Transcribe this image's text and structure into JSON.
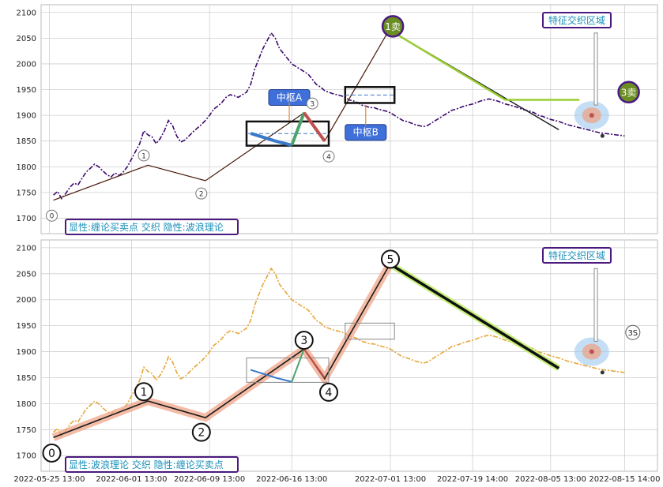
{
  "chart_data": [
    {
      "type": "line",
      "title": "",
      "ylim": [
        1670,
        2115
      ],
      "yticks": [
        1700,
        1750,
        1800,
        1850,
        1900,
        1950,
        2000,
        2050,
        2100
      ],
      "grid": true,
      "price": {
        "color": "#3d0a6e",
        "style": "dashdot",
        "x": [
          0.5,
          1,
          1.5,
          2,
          2.5,
          3,
          3.5,
          4,
          4.5,
          5,
          5.5,
          6,
          6.5,
          7,
          7.5,
          8,
          8.5,
          9,
          9.5,
          10,
          10.5,
          11,
          11.5,
          12,
          12.5,
          13,
          13.5,
          14,
          14.5,
          15,
          15.5,
          16,
          16.5,
          17,
          17.5,
          18,
          18.5,
          19,
          19.5,
          20,
          20.5,
          21,
          21.5,
          22,
          22.5,
          23,
          23.5,
          24,
          24.5,
          25,
          25.5,
          26,
          26.5,
          27,
          27.5,
          28,
          28.5,
          29,
          29.5,
          30,
          30.5,
          31,
          31.5,
          32,
          32.5,
          33,
          33.5,
          34,
          34.5,
          35,
          35.5,
          36,
          36.5,
          37,
          37.5,
          38,
          38.5,
          39,
          39.5,
          40,
          40.5,
          41,
          41.5,
          42,
          42.5,
          43,
          43.5,
          44,
          44.5,
          45,
          45.5,
          46,
          46.5,
          47,
          47.5,
          48,
          48.5,
          49,
          49.5,
          50,
          50.5,
          51,
          51.5,
          52,
          52.5,
          53,
          53.5,
          54,
          54.5,
          55,
          55.5,
          56,
          56.5,
          57,
          57.5,
          58,
          58.5,
          59,
          59.5,
          60,
          60.5,
          61,
          61.5,
          62,
          62.5,
          63,
          63.5,
          64,
          64.5,
          65,
          65.5,
          66,
          66.5,
          67,
          67.5,
          68,
          68.5,
          69,
          69.5,
          70
        ],
        "y": [
          1745,
          1752,
          1738,
          1748,
          1760,
          1768,
          1765,
          1778,
          1790,
          1797,
          1805,
          1800,
          1792,
          1785,
          1780,
          1788,
          1783,
          1790,
          1800,
          1815,
          1830,
          1845,
          1870,
          1862,
          1858,
          1845,
          1855,
          1870,
          1890,
          1880,
          1860,
          1848,
          1852,
          1860,
          1868,
          1875,
          1882,
          1890,
          1900,
          1912,
          1918,
          1925,
          1935,
          1940,
          1938,
          1935,
          1940,
          1945,
          1960,
          1990,
          2010,
          2030,
          2045,
          2060,
          2050,
          2030,
          2020,
          2010,
          2000,
          1995,
          1990,
          1985,
          1980,
          1970,
          1960,
          1955,
          1948,
          1945,
          1942,
          1940,
          1938,
          1935,
          1930,
          1928,
          1925,
          1920,
          1918,
          1915,
          1915,
          1912,
          1910,
          1908,
          1905,
          1900,
          1895,
          1890,
          1888,
          1885,
          1882,
          1880,
          1878,
          1880,
          1885,
          1890,
          1895,
          1900,
          1905,
          1910,
          1912,
          1915,
          1918,
          1920,
          1922,
          1925,
          1928,
          1930,
          1932,
          1930,
          1928,
          1925,
          1922,
          1920,
          1918,
          1915,
          1912,
          1910,
          1908,
          1905,
          1900,
          1898,
          1895,
          1892,
          1890,
          1888,
          1885,
          1882,
          1880,
          1878,
          1876,
          1874,
          1872,
          1870,
          1868,
          1866,
          1865,
          1864,
          1863,
          1862,
          1861,
          1860
        ]
      },
      "bi_points": [
        {
          "x": 0.5,
          "y": 1735,
          "label": "0"
        },
        {
          "x": 12,
          "y": 1803,
          "label": "1"
        },
        {
          "x": 19,
          "y": 1773,
          "label": "2"
        },
        {
          "x": 31,
          "y": 1905,
          "label": "3"
        },
        {
          "x": 33.5,
          "y": 1850,
          "label": "4"
        },
        {
          "x": 41.5,
          "y": 2070,
          "label": "1卖"
        },
        {
          "x": 62,
          "y": 1860
        },
        {
          "x": 64,
          "y": 1930
        }
      ],
      "zhongshu": [
        {
          "label": "中枢A",
          "x0": 24,
          "x1": 34,
          "y0": 1841,
          "y1": 1888
        },
        {
          "label": "中枢B",
          "x0": 36,
          "x1": 42,
          "y0": 1924,
          "y1": 1955
        }
      ],
      "badges": [
        "1卖",
        "3卖"
      ],
      "annotation_box": "特征交织区域",
      "corner_text": "显性:缠论买卖点 交织 隐性:波浪理论"
    },
    {
      "type": "line",
      "title": "",
      "ylim": [
        1670,
        2115
      ],
      "yticks": [
        1700,
        1750,
        1800,
        1850,
        1900,
        1950,
        2000,
        2050,
        2100
      ],
      "grid": true,
      "price": {
        "color": "#e6a63a",
        "style": "dashdot"
      },
      "wave_points": [
        {
          "x": 0.5,
          "y": 1735,
          "label": "0"
        },
        {
          "x": 12,
          "y": 1805,
          "label": "1"
        },
        {
          "x": 19,
          "y": 1773,
          "label": "2"
        },
        {
          "x": 31,
          "y": 1905,
          "label": "3"
        },
        {
          "x": 33.5,
          "y": 1848,
          "label": "4"
        },
        {
          "x": 41.5,
          "y": 2070,
          "label": "5"
        },
        {
          "x": 62,
          "y": 1868
        }
      ],
      "badges": [
        "3S"
      ],
      "annotation_box": "特征交织区域",
      "corner_text": "显性:波浪理论 交织 隐性:缠论买卖点"
    }
  ],
  "x_ticks": [
    "2022-05-25 13:00",
    "2022-06-01 13:00",
    "2022-06-09 13:00",
    "2022-06-16 13:00",
    "2022-07-01 13:00",
    "2022-07-19 14:00",
    "2022-08-05 13:00",
    "2022-08-15 14:00"
  ]
}
